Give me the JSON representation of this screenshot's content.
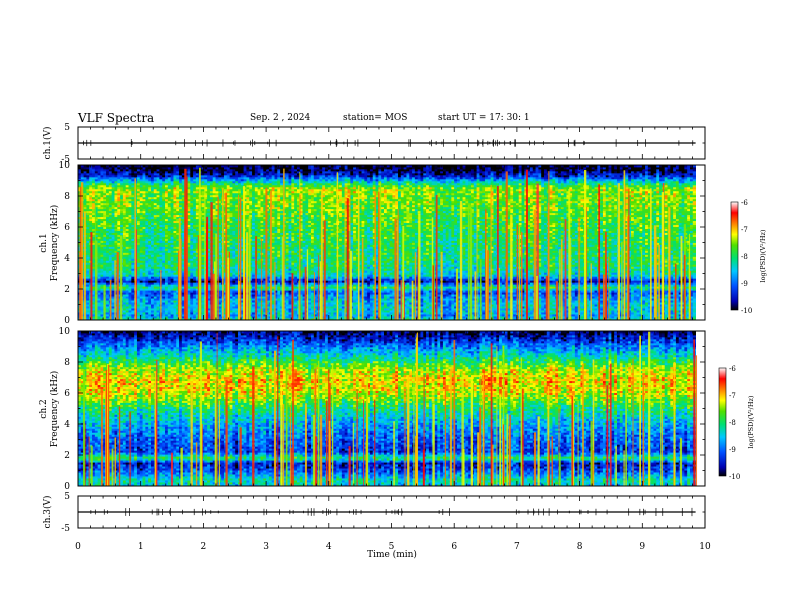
{
  "header": {
    "title": "VLF Spectra",
    "date": "Sep. 2 , 2024",
    "station": "station= MOS",
    "start": "start  UT =   17: 30: 1"
  },
  "chart_data": [
    {
      "type": "line",
      "panel": "ch.1 waveform",
      "ylabel": "ch.1(V)",
      "ylim": [
        -5,
        5
      ],
      "yticks": [
        "5",
        "-5"
      ],
      "xlim": [
        0,
        10
      ],
      "series": [
        {
          "x": [
            0,
            9.85
          ],
          "y": [
            0,
            0
          ]
        }
      ],
      "color": "#000000"
    },
    {
      "type": "heatmap",
      "panel": "ch.1 spectrogram",
      "ylabel_line1": "ch.1",
      "ylabel_line2": "Frequency  (kHz)",
      "ylim": [
        0,
        10
      ],
      "yticks": [
        "0",
        "2",
        "4",
        "6",
        "8",
        "10"
      ],
      "xlim": [
        0,
        10
      ],
      "data_xmax": 9.85,
      "band_profile": {
        "freq_khz": [
          0,
          0.3,
          0.6,
          1.2,
          1.6,
          1.8,
          2.1,
          2.5,
          2.9,
          3.5,
          5.0,
          6.5,
          7.5,
          8.5,
          8.9,
          9.3,
          9.7,
          10
        ],
        "level": [
          -8.2,
          -8.8,
          -8.5,
          -8.6,
          -8.9,
          -9.3,
          -8.0,
          -9.6,
          -8.4,
          -8.1,
          -8.0,
          -7.8,
          -7.6,
          -7.5,
          -8.3,
          -9.4,
          -9.9,
          -10
        ]
      },
      "colorbar": {
        "label": "log(PSD)(V²/Hz)",
        "range": [
          -10,
          -6
        ],
        "ticks": [
          "-6",
          "-7",
          "-8",
          "-9",
          "-10"
        ]
      }
    },
    {
      "type": "heatmap",
      "panel": "ch.2 spectrogram",
      "ylabel_line1": "ch.2",
      "ylabel_line2": "Frequency  (kHz)",
      "ylim": [
        0,
        10
      ],
      "yticks": [
        "0",
        "2",
        "4",
        "6",
        "8",
        "10"
      ],
      "xlim": [
        0,
        10
      ],
      "data_xmax": 9.85,
      "band_profile": {
        "freq_khz": [
          0,
          0.4,
          1.0,
          1.5,
          1.8,
          2.2,
          3.0,
          4.0,
          5.0,
          6.0,
          6.8,
          7.5,
          8.2,
          8.8,
          9.3,
          9.7,
          10
        ],
        "level": [
          -8.6,
          -8.3,
          -9.2,
          -9.5,
          -7.9,
          -9.3,
          -9.1,
          -8.7,
          -8.1,
          -7.3,
          -7.1,
          -7.4,
          -8.1,
          -8.7,
          -9.2,
          -9.6,
          -9.9
        ]
      },
      "colorbar": {
        "label": "log(PSD)(V²/Hz)",
        "range": [
          -10,
          -6
        ],
        "ticks": [
          "-6",
          "-7",
          "-8",
          "-9",
          "-10"
        ]
      }
    },
    {
      "type": "line",
      "panel": "ch.3 waveform",
      "ylabel": "ch.3(V)",
      "ylim": [
        -5,
        5
      ],
      "yticks": [
        "5",
        "-5"
      ],
      "xlim": [
        0,
        10
      ],
      "series": [
        {
          "x": [
            0,
            9.85
          ],
          "y": [
            0,
            0
          ]
        }
      ],
      "color": "#000000"
    }
  ],
  "xaxis": {
    "label": "Time  (min)",
    "range": [
      0,
      10
    ],
    "ticks": [
      "0",
      "1",
      "2",
      "3",
      "4",
      "5",
      "6",
      "7",
      "8",
      "9",
      "10"
    ]
  }
}
